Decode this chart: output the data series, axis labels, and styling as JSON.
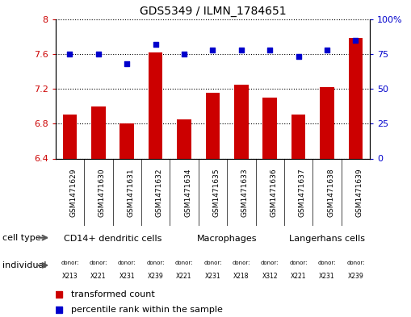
{
  "title": "GDS5349 / ILMN_1784651",
  "samples": [
    "GSM1471629",
    "GSM1471630",
    "GSM1471631",
    "GSM1471632",
    "GSM1471634",
    "GSM1471635",
    "GSM1471633",
    "GSM1471636",
    "GSM1471637",
    "GSM1471638",
    "GSM1471639"
  ],
  "bar_values": [
    6.9,
    7.0,
    6.8,
    7.62,
    6.85,
    7.15,
    7.25,
    7.1,
    6.9,
    7.22,
    7.78
  ],
  "percentile_values": [
    75,
    75,
    68,
    82,
    75,
    78,
    78,
    78,
    73,
    78,
    85
  ],
  "ylim_left": [
    6.4,
    8.0
  ],
  "ylim_right": [
    0,
    100
  ],
  "yticks_left": [
    6.4,
    6.8,
    7.2,
    7.6,
    8.0
  ],
  "yticks_right": [
    0,
    25,
    50,
    75,
    100
  ],
  "ytick_labels_left": [
    "6.4",
    "6.8",
    "7.2",
    "7.6",
    "8"
  ],
  "ytick_labels_right": [
    "0",
    "25",
    "50",
    "75",
    "100%"
  ],
  "bar_color": "#cc0000",
  "dot_color": "#0000cc",
  "bar_bottom": 6.4,
  "group_spans": [
    {
      "label": "CD14+ dendritic cells",
      "cols": [
        0,
        1,
        2,
        3
      ],
      "color": "#99ee99"
    },
    {
      "label": "Macrophages",
      "cols": [
        4,
        5,
        6,
        7
      ],
      "color": "#99ee99"
    },
    {
      "label": "Langerhans cells",
      "cols": [
        8,
        9,
        10
      ],
      "color": "#66dd66"
    }
  ],
  "donors": [
    "X213",
    "X221",
    "X231",
    "X239",
    "X221",
    "X231",
    "X218",
    "X312",
    "X221",
    "X231",
    "X239"
  ],
  "donor_colors": [
    "#ffffff",
    "#ffffff",
    "#ffffff",
    "#ee88ee",
    "#ffffff",
    "#ee88ee",
    "#ee88ee",
    "#ee88ee",
    "#ffffff",
    "#ffffff",
    "#ee88ee"
  ],
  "cell_type_label": "cell type",
  "individual_label": "individual",
  "legend_bar_label": "transformed count",
  "legend_dot_label": "percentile rank within the sample",
  "tick_color_left": "#cc0000",
  "tick_color_right": "#0000cc",
  "sample_bg_color": "#dddddd",
  "border_color": "#000000"
}
